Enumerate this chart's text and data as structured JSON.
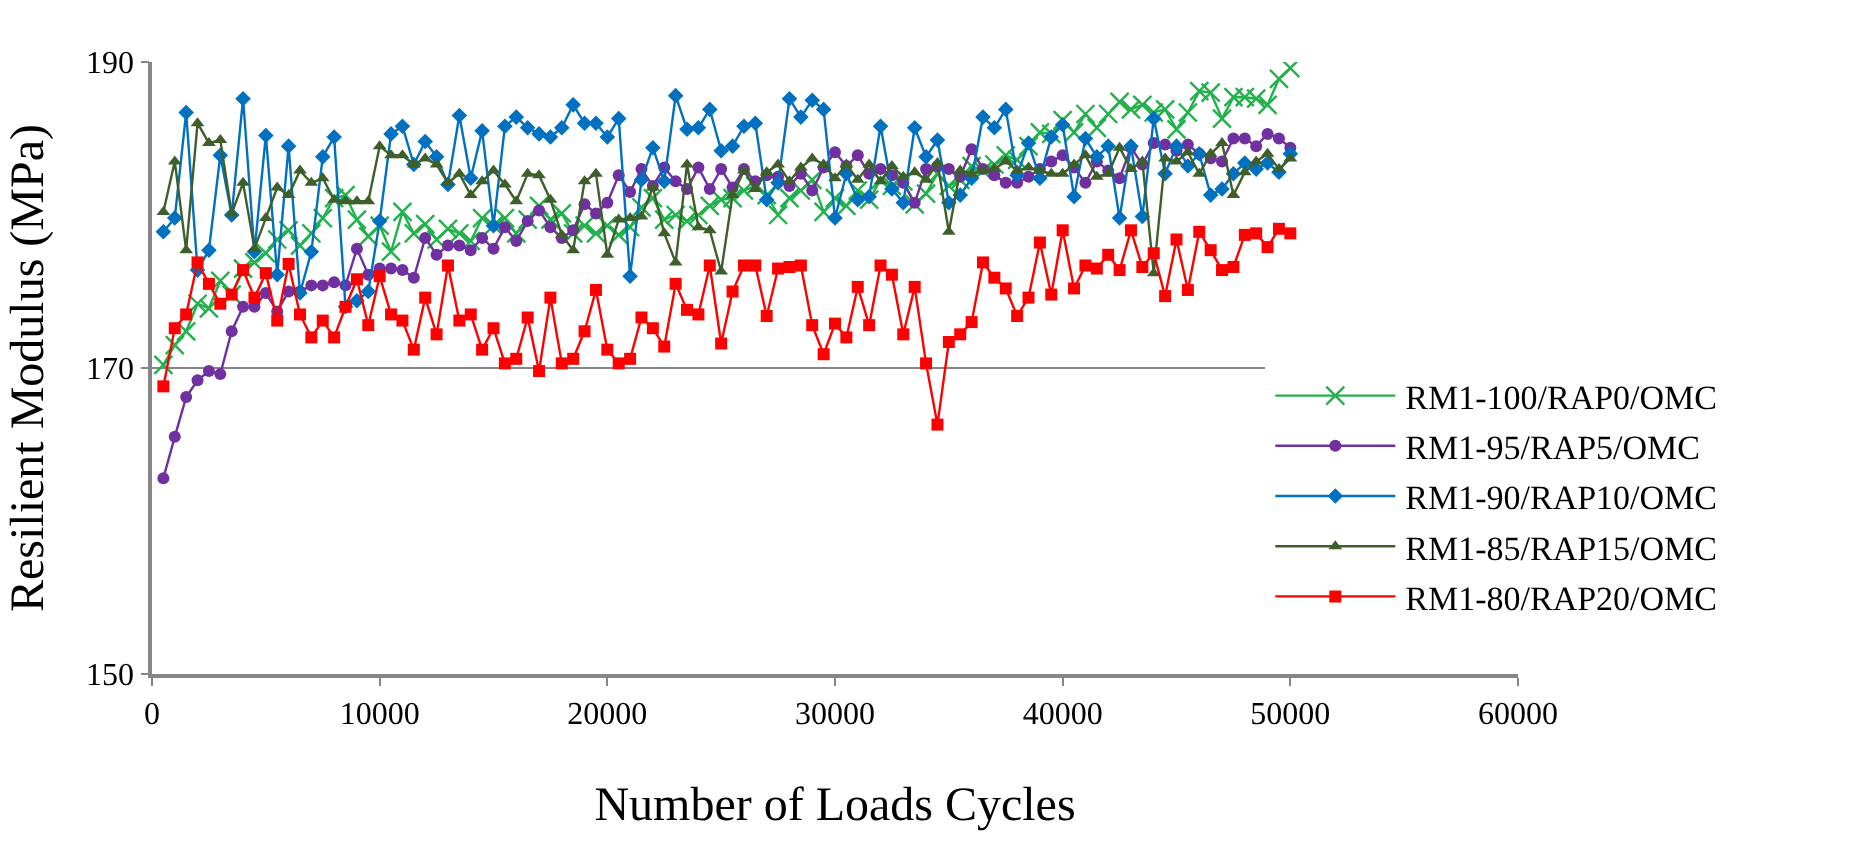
{
  "chart_data": {
    "type": "line",
    "xlabel": "Number of Loads Cycles",
    "ylabel": "Resilient Modulus (MPa)",
    "xlim": [
      0,
      60000
    ],
    "xticks": [
      0,
      10000,
      20000,
      30000,
      40000,
      50000,
      60000
    ],
    "ylim": [
      150,
      190
    ],
    "yticks": [
      150,
      170,
      190
    ],
    "grid": "y",
    "legend": "right",
    "x": [
      500,
      1000,
      1500,
      2000,
      2500,
      3000,
      3500,
      4000,
      4500,
      5000,
      5500,
      6000,
      6500,
      7000,
      7500,
      8000,
      8500,
      9000,
      9500,
      10000,
      10500,
      11000,
      11500,
      12000,
      12500,
      13000,
      13500,
      14000,
      14500,
      15000,
      15500,
      16000,
      16500,
      17000,
      17500,
      18000,
      18500,
      19000,
      19500,
      20000,
      20500,
      21000,
      21500,
      22000,
      22500,
      23000,
      23500,
      24000,
      24500,
      25000,
      25500,
      26000,
      26500,
      27000,
      27500,
      28000,
      28500,
      29000,
      29500,
      30000,
      30500,
      31000,
      31500,
      32000,
      32500,
      33000,
      33500,
      34000,
      34500,
      35000,
      35500,
      36000,
      36500,
      37000,
      37500,
      38000,
      38500,
      39000,
      39500,
      40000,
      40500,
      41000,
      41500,
      42000,
      42500,
      43000,
      43500,
      44000,
      44500,
      45000,
      45500,
      46000,
      46500,
      47000,
      47500,
      48000,
      48500,
      49000,
      49500,
      50000
    ],
    "series": [
      {
        "name": "RM1-100/RAP0/OMC",
        "color": "#22b14c",
        "marker": "cross",
        "values": [
          170.2,
          171.5,
          172.4,
          174.2,
          173.9,
          175.7,
          174.8,
          176.5,
          176.9,
          177.5,
          178.4,
          179.0,
          178.0,
          178.8,
          179.8,
          181.1,
          181.3,
          179.7,
          178.6,
          179.3,
          177.6,
          180.2,
          178.8,
          179.4,
          178.4,
          179.1,
          178.8,
          178.3,
          179.8,
          179.3,
          179.8,
          178.8,
          179.7,
          180.6,
          179.7,
          180.1,
          178.8,
          179.3,
          178.8,
          179.3,
          178.7,
          179.2,
          180.5,
          181.1,
          179.7,
          180.0,
          179.6,
          180.0,
          180.6,
          181.0,
          181.1,
          181.6,
          181.9,
          181.3,
          180.0,
          181.1,
          181.6,
          182.3,
          180.2,
          181.1,
          180.6,
          181.6,
          181.0,
          182.3,
          181.9,
          182.2,
          180.7,
          181.4,
          182.7,
          181.9,
          182.3,
          183.2,
          182.9,
          183.3,
          183.9,
          183.6,
          184.5,
          185.4,
          185.3,
          186.2,
          185.4,
          186.6,
          185.7,
          186.6,
          187.4,
          186.9,
          187.2,
          186.7,
          186.9,
          185.6,
          186.7,
          188.1,
          188.0,
          186.3,
          187.7,
          187.7,
          187.6,
          187.2,
          188.9,
          189.6
        ]
      },
      {
        "name": "RM1-95/RAP5/OMC",
        "color": "#7030a0",
        "marker": "circle",
        "values": [
          162.8,
          165.5,
          168.1,
          169.2,
          169.8,
          169.6,
          172.4,
          174.0,
          174.0,
          174.9,
          173.7,
          175.0,
          175.0,
          175.4,
          175.4,
          175.6,
          175.4,
          177.8,
          176.1,
          176.5,
          176.5,
          176.4,
          175.9,
          178.5,
          177.4,
          178.0,
          178.0,
          177.7,
          178.5,
          177.8,
          179.2,
          178.3,
          179.6,
          180.3,
          179.2,
          178.5,
          179.0,
          180.7,
          180.1,
          180.8,
          182.6,
          181.5,
          183.0,
          181.9,
          183.1,
          182.2,
          181.7,
          183.1,
          181.7,
          183.0,
          181.8,
          183.0,
          182.2,
          182.6,
          182.5,
          181.9,
          182.7,
          181.6,
          183.1,
          184.1,
          183.2,
          183.9,
          182.7,
          183.0,
          182.6,
          182.1,
          180.8,
          183.0,
          183.2,
          183.0,
          182.5,
          184.3,
          183.0,
          182.6,
          182.1,
          182.1,
          182.5,
          183.0,
          183.5,
          183.9,
          183.1,
          182.1,
          183.5,
          182.9,
          182.4,
          184.4,
          183.3,
          184.7,
          184.6,
          184.2,
          184.6,
          184.0,
          183.7,
          183.5,
          185.0,
          185.0,
          184.5,
          185.3,
          185.0,
          184.4
        ]
      },
      {
        "name": "RM1-90/RAP10/OMC",
        "color": "#0070c0",
        "marker": "diamond",
        "values": [
          178.9,
          179.8,
          186.7,
          176.4,
          177.7,
          183.9,
          180.0,
          187.6,
          177.6,
          185.2,
          176.1,
          184.5,
          174.9,
          177.6,
          183.8,
          185.1,
          174.0,
          174.4,
          175.0,
          179.6,
          185.3,
          185.8,
          183.3,
          184.8,
          183.8,
          182.0,
          186.5,
          182.4,
          185.5,
          179.3,
          185.8,
          186.4,
          185.7,
          185.3,
          185.1,
          185.7,
          187.2,
          186.0,
          186.0,
          185.1,
          186.3,
          176.0,
          182.3,
          184.4,
          182.2,
          187.8,
          185.6,
          185.7,
          186.9,
          184.2,
          184.5,
          185.8,
          186.0,
          181.0,
          182.1,
          187.6,
          186.4,
          187.5,
          186.9,
          179.8,
          182.7,
          181.0,
          181.2,
          185.8,
          181.7,
          180.8,
          185.7,
          183.8,
          184.9,
          180.8,
          181.3,
          182.4,
          186.4,
          185.7,
          186.9,
          182.6,
          184.7,
          182.4,
          185.1,
          185.9,
          181.2,
          185.0,
          183.8,
          184.5,
          179.8,
          184.5,
          179.9,
          186.3,
          182.7,
          184.5,
          183.2,
          184.0,
          181.3,
          181.7,
          182.7,
          183.4,
          183.0,
          183.4,
          182.8,
          184.0
        ]
      },
      {
        "name": "RM1-85/RAP15/OMC",
        "color": "#3f5f2a",
        "marker": "triangle",
        "values": [
          180.2,
          183.5,
          177.7,
          186.0,
          184.7,
          184.9,
          180.1,
          182.1,
          177.8,
          179.8,
          181.8,
          181.3,
          182.9,
          182.1,
          182.4,
          181.0,
          180.9,
          180.9,
          180.9,
          184.5,
          183.9,
          183.9,
          183.3,
          183.7,
          183.3,
          182.1,
          182.7,
          181.3,
          182.2,
          182.9,
          182.0,
          180.9,
          182.7,
          182.6,
          181.0,
          178.7,
          177.7,
          182.2,
          182.7,
          177.4,
          179.7,
          179.8,
          179.9,
          181.8,
          178.8,
          176.9,
          183.3,
          179.2,
          179.0,
          176.3,
          181.3,
          182.9,
          181.7,
          182.8,
          183.3,
          182.2,
          183.1,
          183.7,
          183.3,
          182.4,
          183.3,
          182.3,
          183.3,
          182.2,
          183.2,
          182.5,
          182.8,
          182.3,
          183.4,
          178.9,
          182.9,
          182.7,
          182.9,
          183.0,
          183.5,
          182.9,
          183.1,
          182.9,
          182.7,
          182.7,
          183.3,
          183.9,
          182.5,
          182.7,
          184.4,
          183.0,
          183.5,
          176.2,
          183.7,
          183.5,
          184.1,
          182.7,
          184.0,
          184.7,
          181.3,
          182.8,
          183.5,
          184.0,
          183.0,
          183.7
        ]
      },
      {
        "name": "RM1-80/RAP20/OMC",
        "color": "#ff0000",
        "marker": "square",
        "values": [
          168.8,
          172.6,
          173.5,
          176.9,
          175.5,
          174.2,
          174.8,
          176.4,
          174.6,
          176.2,
          173.1,
          176.8,
          173.5,
          172.0,
          173.1,
          172.0,
          174.0,
          175.8,
          172.8,
          176.0,
          173.5,
          173.1,
          171.2,
          174.6,
          172.2,
          176.7,
          173.1,
          173.5,
          171.2,
          172.6,
          170.3,
          170.6,
          173.3,
          169.8,
          174.6,
          170.3,
          170.6,
          172.4,
          175.1,
          171.2,
          170.3,
          170.6,
          173.3,
          172.6,
          171.4,
          175.5,
          173.8,
          173.5,
          176.7,
          171.6,
          175.0,
          176.7,
          176.7,
          173.4,
          176.5,
          176.6,
          176.7,
          172.8,
          170.9,
          172.9,
          172.0,
          175.3,
          172.8,
          176.7,
          176.1,
          172.2,
          175.3,
          170.3,
          166.3,
          171.7,
          172.2,
          173.0,
          176.9,
          175.9,
          175.2,
          173.4,
          174.6,
          178.2,
          174.8,
          179.0,
          175.2,
          176.7,
          176.5,
          177.4,
          176.4,
          179.0,
          176.6,
          177.5,
          174.7,
          178.4,
          175.1,
          178.9,
          177.7,
          176.4,
          176.6,
          178.7,
          178.8,
          177.9,
          179.1,
          178.8
        ]
      }
    ]
  }
}
